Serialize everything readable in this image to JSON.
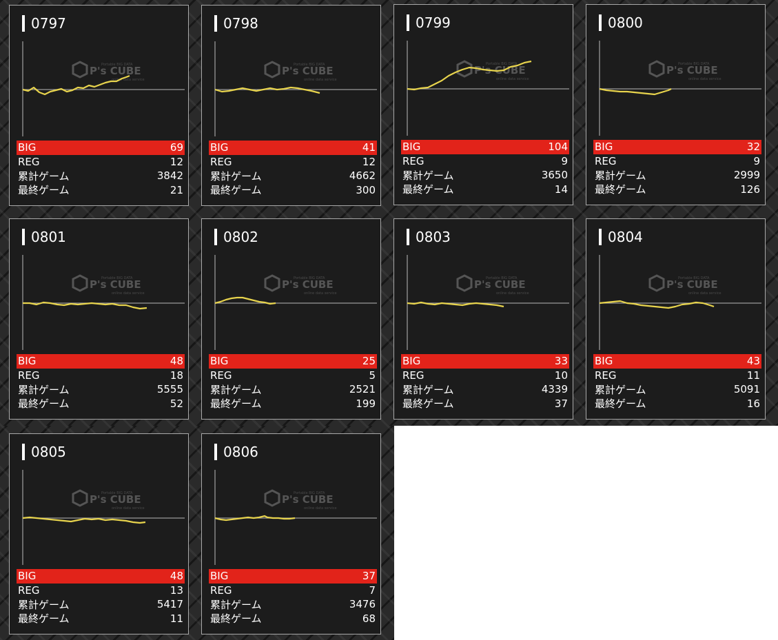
{
  "labels": {
    "big": "BIG",
    "reg": "REG",
    "total": "累計ゲーム",
    "last": "最終ゲーム"
  },
  "watermark": {
    "brand": "P's CUBE",
    "small_top": "Portable BIG DATA",
    "small_bottom": "online data service"
  },
  "colors": {
    "big_row": "#e2231a",
    "graph_line": "#e8d44d",
    "card_bg": "#1c1c1c",
    "card_border": "#a9a9a9"
  },
  "machines": [
    {
      "id": "0797",
      "big": "69",
      "reg": "12",
      "total": "3842",
      "last": "21",
      "graph": [
        [
          0,
          0
        ],
        [
          8,
          -2
        ],
        [
          16,
          3
        ],
        [
          24,
          -4
        ],
        [
          32,
          -7
        ],
        [
          40,
          -3
        ],
        [
          48,
          -1
        ],
        [
          56,
          1
        ],
        [
          64,
          -3
        ],
        [
          72,
          -1
        ],
        [
          80,
          3
        ],
        [
          88,
          2
        ],
        [
          96,
          6
        ],
        [
          104,
          4
        ],
        [
          112,
          7
        ],
        [
          120,
          10
        ],
        [
          128,
          12
        ],
        [
          136,
          12
        ],
        [
          144,
          16
        ],
        [
          150,
          18
        ],
        [
          155,
          20
        ]
      ]
    },
    {
      "id": "0798",
      "big": "41",
      "reg": "12",
      "total": "4662",
      "last": "300",
      "graph": [
        [
          0,
          0
        ],
        [
          10,
          -3
        ],
        [
          20,
          -2
        ],
        [
          30,
          0
        ],
        [
          40,
          2
        ],
        [
          50,
          0
        ],
        [
          60,
          -2
        ],
        [
          70,
          0
        ],
        [
          80,
          2
        ],
        [
          90,
          0
        ],
        [
          100,
          1
        ],
        [
          110,
          3
        ],
        [
          120,
          2
        ],
        [
          130,
          0
        ],
        [
          140,
          -2
        ],
        [
          152,
          -5
        ]
      ]
    },
    {
      "id": "0799",
      "big": "104",
      "reg": "9",
      "total": "3650",
      "last": "14",
      "graph": [
        [
          0,
          0
        ],
        [
          10,
          -1
        ],
        [
          20,
          1
        ],
        [
          30,
          2
        ],
        [
          40,
          7
        ],
        [
          50,
          12
        ],
        [
          60,
          19
        ],
        [
          70,
          24
        ],
        [
          80,
          28
        ],
        [
          90,
          31
        ],
        [
          100,
          30
        ],
        [
          110,
          28
        ],
        [
          120,
          27
        ],
        [
          130,
          26
        ],
        [
          140,
          27
        ],
        [
          150,
          32
        ],
        [
          160,
          34
        ],
        [
          170,
          38
        ],
        [
          180,
          40
        ]
      ]
    },
    {
      "id": "0800",
      "big": "32",
      "reg": "9",
      "total": "2999",
      "last": "126",
      "graph": [
        [
          0,
          0
        ],
        [
          10,
          -2
        ],
        [
          20,
          -3
        ],
        [
          30,
          -4
        ],
        [
          40,
          -4
        ],
        [
          50,
          -5
        ],
        [
          60,
          -6
        ],
        [
          70,
          -7
        ],
        [
          80,
          -8
        ],
        [
          90,
          -5
        ],
        [
          100,
          -2
        ],
        [
          104,
          0
        ]
      ]
    },
    {
      "id": "0801",
      "big": "48",
      "reg": "18",
      "total": "5555",
      "last": "52",
      "graph": [
        [
          0,
          0
        ],
        [
          10,
          0
        ],
        [
          20,
          -2
        ],
        [
          30,
          1
        ],
        [
          40,
          0
        ],
        [
          50,
          -2
        ],
        [
          60,
          -3
        ],
        [
          70,
          -1
        ],
        [
          80,
          -2
        ],
        [
          90,
          -1
        ],
        [
          100,
          0
        ],
        [
          110,
          -1
        ],
        [
          120,
          -2
        ],
        [
          130,
          -1
        ],
        [
          140,
          -3
        ],
        [
          150,
          -3
        ],
        [
          160,
          -6
        ],
        [
          170,
          -8
        ],
        [
          180,
          -7
        ]
      ]
    },
    {
      "id": "0802",
      "big": "25",
      "reg": "5",
      "total": "2521",
      "last": "199",
      "graph": [
        [
          0,
          0
        ],
        [
          8,
          2
        ],
        [
          16,
          5
        ],
        [
          24,
          7
        ],
        [
          32,
          8
        ],
        [
          40,
          8
        ],
        [
          48,
          6
        ],
        [
          56,
          4
        ],
        [
          64,
          2
        ],
        [
          72,
          1
        ],
        [
          80,
          -1
        ],
        [
          88,
          0
        ]
      ]
    },
    {
      "id": "0803",
      "big": "33",
      "reg": "10",
      "total": "4339",
      "last": "37",
      "graph": [
        [
          0,
          0
        ],
        [
          10,
          -1
        ],
        [
          20,
          1
        ],
        [
          30,
          -1
        ],
        [
          40,
          -2
        ],
        [
          50,
          0
        ],
        [
          60,
          -1
        ],
        [
          70,
          -2
        ],
        [
          80,
          -3
        ],
        [
          90,
          -1
        ],
        [
          100,
          0
        ],
        [
          110,
          -1
        ],
        [
          120,
          -2
        ],
        [
          130,
          -3
        ],
        [
          140,
          -5
        ]
      ]
    },
    {
      "id": "0804",
      "big": "43",
      "reg": "11",
      "total": "5091",
      "last": "16",
      "graph": [
        [
          0,
          0
        ],
        [
          10,
          1
        ],
        [
          20,
          2
        ],
        [
          30,
          3
        ],
        [
          40,
          0
        ],
        [
          50,
          -1
        ],
        [
          60,
          -3
        ],
        [
          70,
          -4
        ],
        [
          80,
          -5
        ],
        [
          90,
          -6
        ],
        [
          100,
          -7
        ],
        [
          110,
          -5
        ],
        [
          120,
          -2
        ],
        [
          130,
          -1
        ],
        [
          140,
          1
        ],
        [
          150,
          0
        ],
        [
          160,
          -3
        ],
        [
          166,
          -5
        ]
      ]
    },
    {
      "id": "0805",
      "big": "48",
      "reg": "13",
      "total": "5417",
      "last": "11",
      "graph": [
        [
          0,
          0
        ],
        [
          10,
          1
        ],
        [
          20,
          0
        ],
        [
          30,
          -1
        ],
        [
          40,
          -2
        ],
        [
          50,
          -3
        ],
        [
          60,
          -4
        ],
        [
          70,
          -5
        ],
        [
          80,
          -3
        ],
        [
          90,
          -1
        ],
        [
          100,
          -2
        ],
        [
          110,
          -1
        ],
        [
          120,
          -3
        ],
        [
          130,
          -2
        ],
        [
          140,
          -3
        ],
        [
          150,
          -4
        ],
        [
          160,
          -6
        ],
        [
          170,
          -7
        ],
        [
          178,
          -6
        ]
      ]
    },
    {
      "id": "0806",
      "big": "37",
      "reg": "7",
      "total": "3476",
      "last": "68",
      "graph": [
        [
          0,
          0
        ],
        [
          8,
          -2
        ],
        [
          16,
          -3
        ],
        [
          24,
          -2
        ],
        [
          32,
          -1
        ],
        [
          40,
          0
        ],
        [
          48,
          1
        ],
        [
          56,
          0
        ],
        [
          64,
          1
        ],
        [
          72,
          3
        ],
        [
          76,
          1
        ],
        [
          84,
          0
        ],
        [
          92,
          0
        ],
        [
          100,
          -1
        ],
        [
          108,
          -1
        ],
        [
          116,
          0
        ]
      ]
    }
  ]
}
